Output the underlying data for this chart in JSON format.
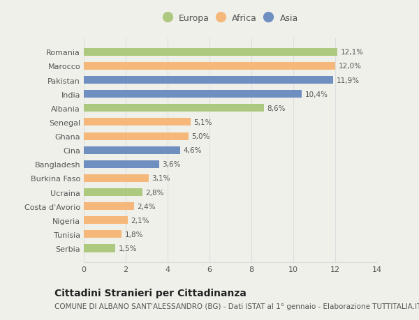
{
  "categories": [
    "Romania",
    "Marocco",
    "Pakistan",
    "India",
    "Albania",
    "Senegal",
    "Ghana",
    "Cina",
    "Bangladesh",
    "Burkina Faso",
    "Ucraina",
    "Costa d'Avorio",
    "Nigeria",
    "Tunisia",
    "Serbia"
  ],
  "values": [
    12.1,
    12.0,
    11.9,
    10.4,
    8.6,
    5.1,
    5.0,
    4.6,
    3.6,
    3.1,
    2.8,
    2.4,
    2.1,
    1.8,
    1.5
  ],
  "labels": [
    "12,1%",
    "12,0%",
    "11,9%",
    "10,4%",
    "8,6%",
    "5,1%",
    "5,0%",
    "4,6%",
    "3,6%",
    "3,1%",
    "2,8%",
    "2,4%",
    "2,1%",
    "1,8%",
    "1,5%"
  ],
  "continent": [
    "Europa",
    "Africa",
    "Asia",
    "Asia",
    "Europa",
    "Africa",
    "Africa",
    "Asia",
    "Asia",
    "Africa",
    "Europa",
    "Africa",
    "Africa",
    "Africa",
    "Europa"
  ],
  "colors": {
    "Europa": "#adc97f",
    "Africa": "#f5b87a",
    "Asia": "#6e8fbf"
  },
  "legend_labels": [
    "Europa",
    "Africa",
    "Asia"
  ],
  "xlim": [
    0,
    14
  ],
  "xticks": [
    0,
    2,
    4,
    6,
    8,
    10,
    12,
    14
  ],
  "title": "Cittadini Stranieri per Cittadinanza",
  "subtitle": "COMUNE DI ALBANO SANT'ALESSANDRO (BG) - Dati ISTAT al 1° gennaio - Elaborazione TUTTITALIA.IT",
  "background_color": "#f0f0eb",
  "plot_bg_color": "#f0f0eb",
  "grid_color": "#dddddd",
  "text_color": "#555555",
  "title_fontsize": 10,
  "subtitle_fontsize": 7.5,
  "label_fontsize": 7.5,
  "tick_fontsize": 8,
  "legend_fontsize": 9,
  "bar_height": 0.55
}
